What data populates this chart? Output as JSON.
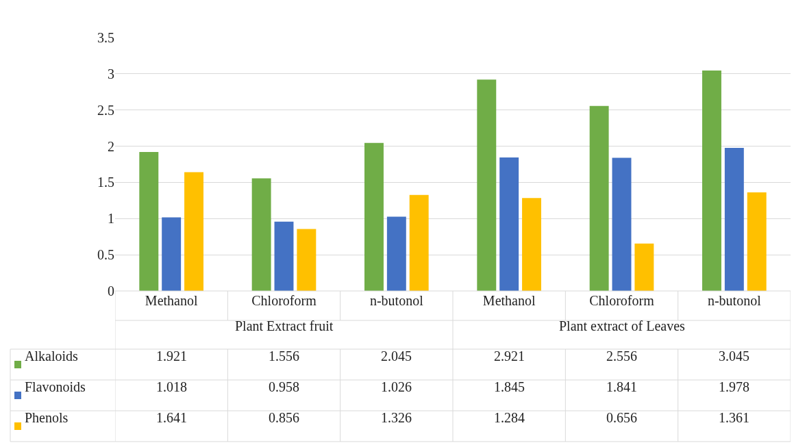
{
  "chart_data": {
    "type": "bar",
    "categories": [
      "Methanol",
      "Chloroform",
      "n-butonol",
      "Methanol",
      "Chloroform",
      "n-butonol"
    ],
    "series": [
      {
        "name": "Alkaloids",
        "color": "#70ad47",
        "values": [
          1.921,
          1.556,
          2.045,
          2.921,
          2.556,
          3.045
        ]
      },
      {
        "name": "Flavonoids",
        "color": "#4472c4",
        "values": [
          1.018,
          0.958,
          1.026,
          1.845,
          1.841,
          1.978
        ]
      },
      {
        "name": "Phenols",
        "color": "#ffc000",
        "values": [
          1.641,
          0.856,
          1.326,
          1.284,
          0.656,
          1.361
        ]
      }
    ],
    "annotations": [
      "Plant Extract fruit",
      "Plant extract of Leaves"
    ],
    "ylim": [
      0,
      3.5
    ],
    "yticks": [
      0,
      0.5,
      1,
      1.5,
      2,
      2.5,
      3,
      3.5
    ],
    "grid": "y",
    "legend": "bottom",
    "data_labels": true
  }
}
